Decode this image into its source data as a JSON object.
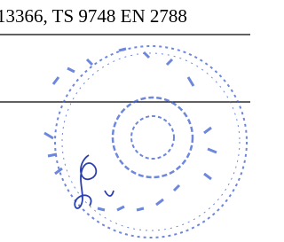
{
  "header": {
    "text": "13366, TS 9748 EN 2788"
  }
}
